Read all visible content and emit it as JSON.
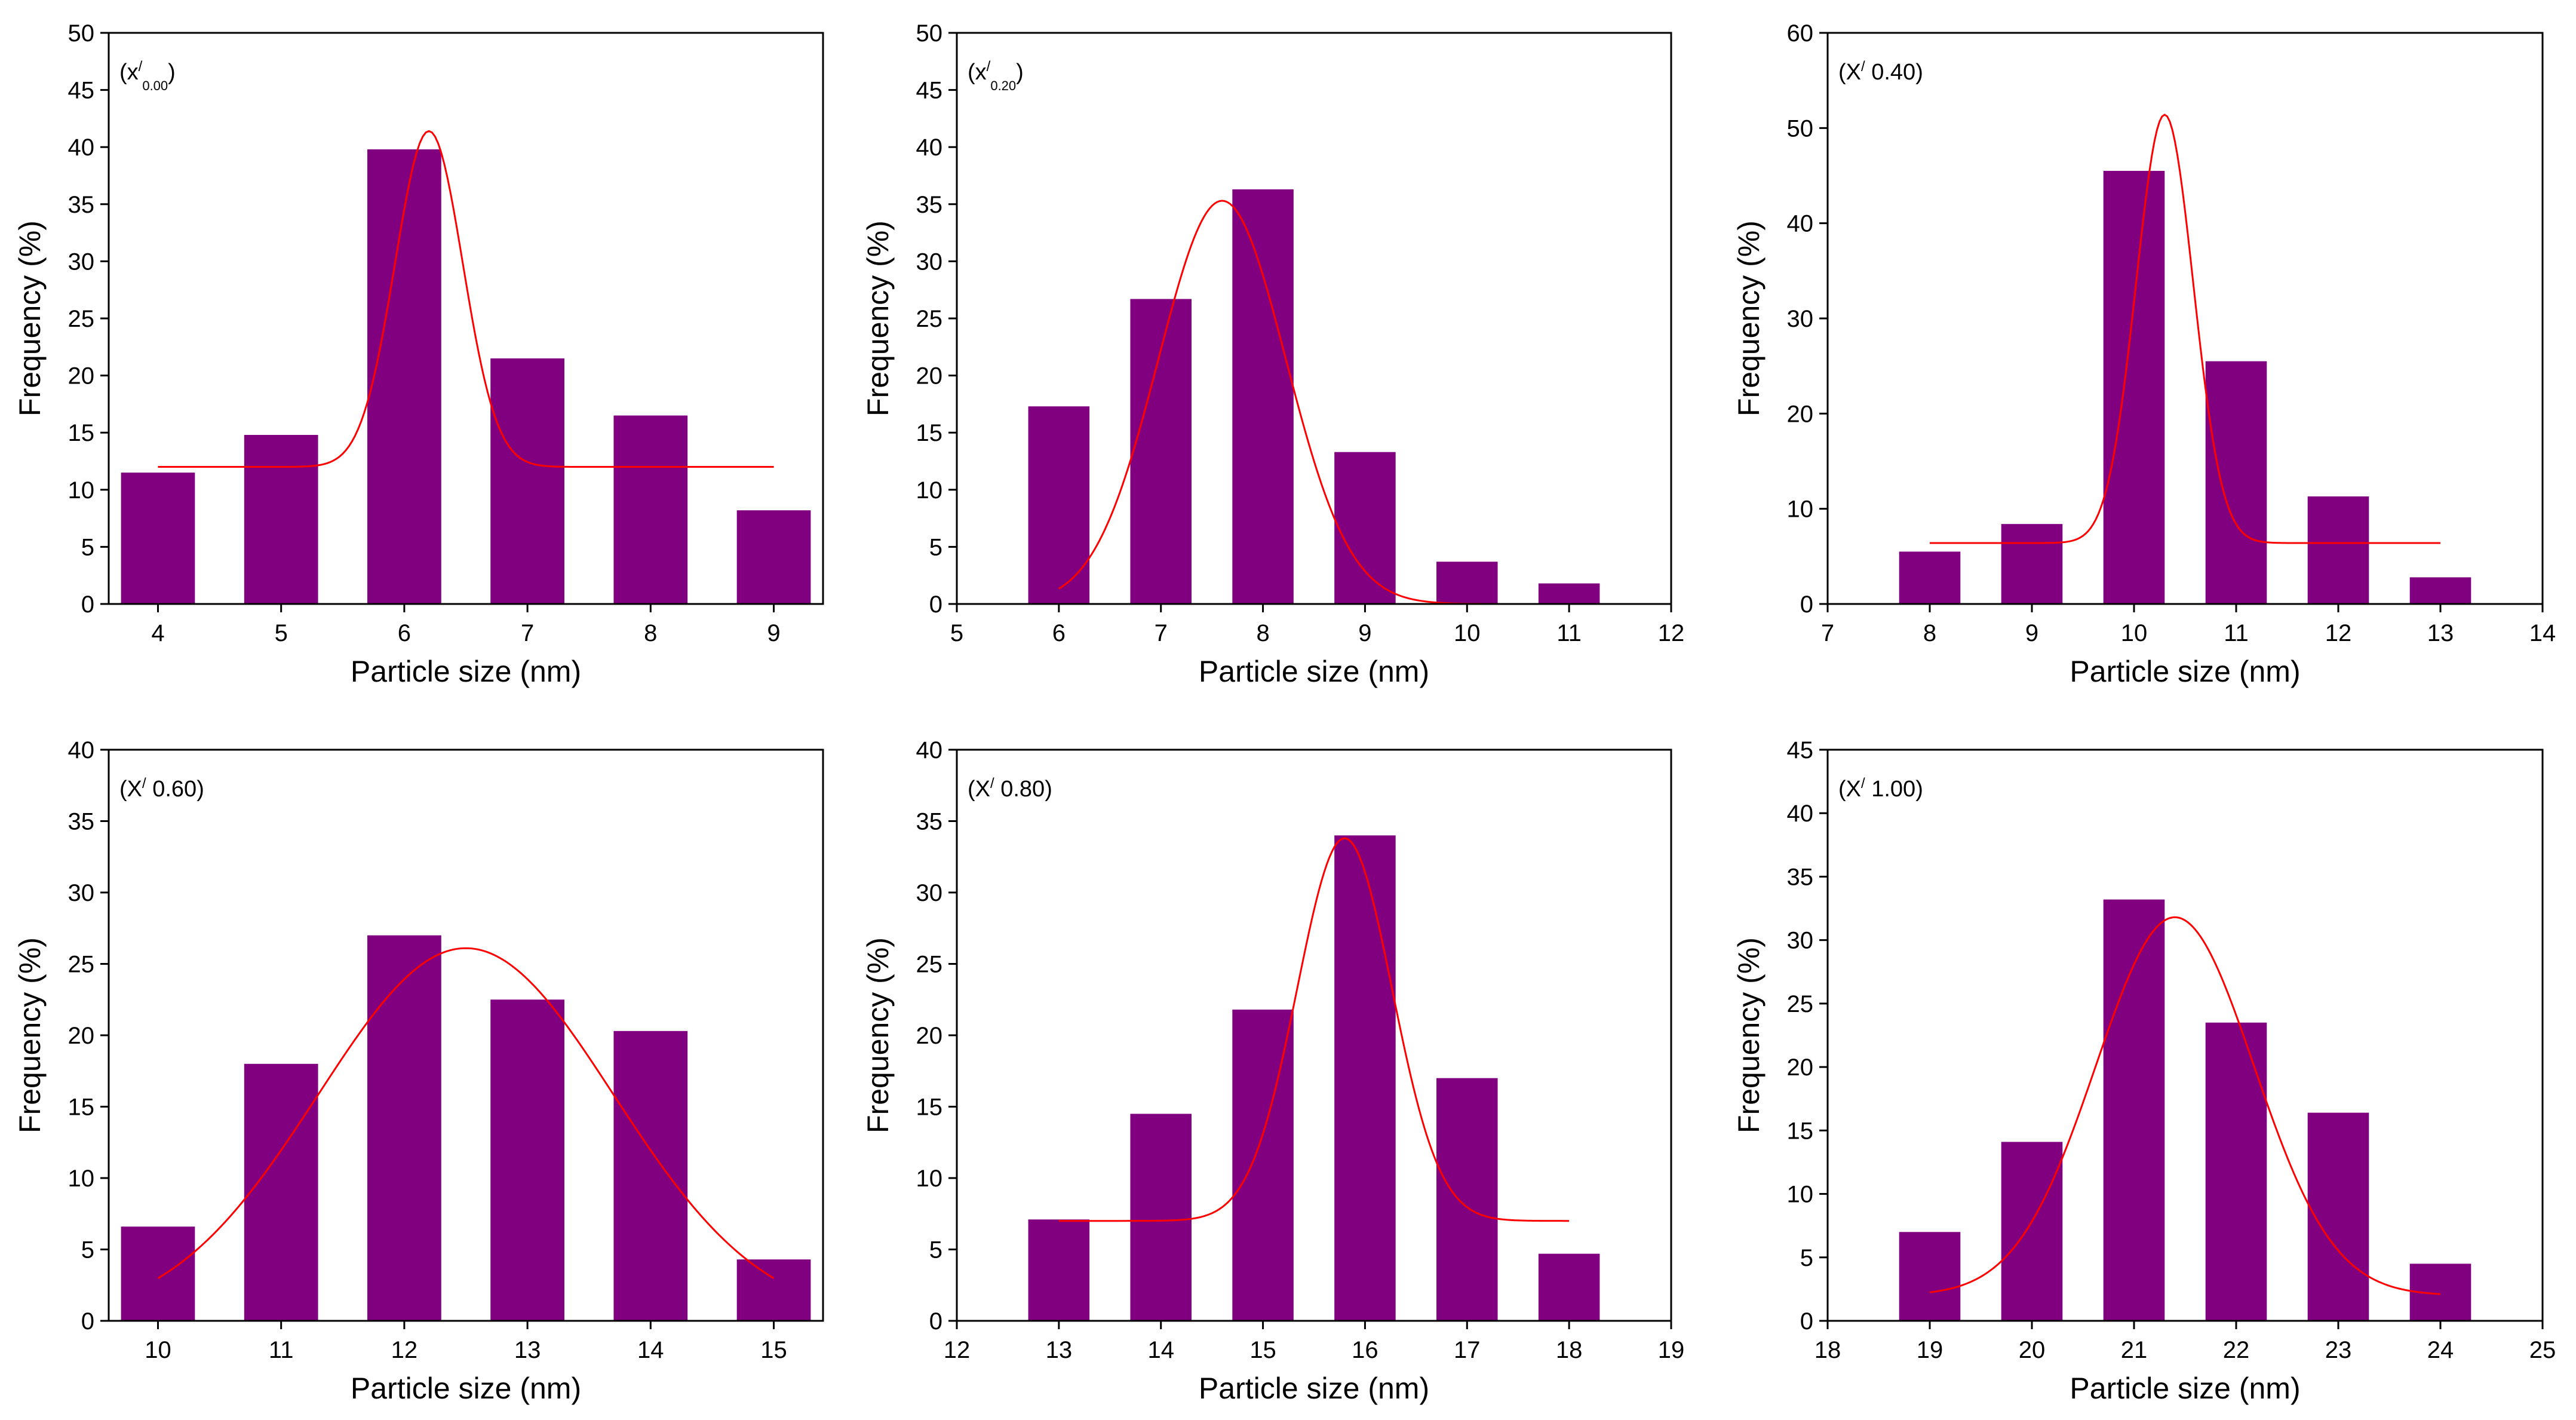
{
  "colors": {
    "bar": "#800080",
    "fit": "#ff0000",
    "axis": "#000000"
  },
  "chart_data": [
    {
      "type": "bar",
      "annotation": {
        "base": "(x",
        "sup": "/",
        "sub": "0.00",
        "close": ")"
      },
      "xlabel": "Particle size (nm)",
      "ylabel": "Frequency (%)",
      "xlim": [
        3.6,
        9.4
      ],
      "ylim": [
        0,
        50
      ],
      "xticks": [
        4,
        5,
        6,
        7,
        8,
        9
      ],
      "yticks": [
        0,
        5,
        10,
        15,
        20,
        25,
        30,
        35,
        40,
        45,
        50
      ],
      "bar_width": 0.6,
      "categories": [
        4,
        5,
        6,
        7,
        8,
        9
      ],
      "values": [
        11.5,
        14.8,
        39.8,
        21.5,
        16.5,
        8.2
      ],
      "fit": {
        "type": "gaussian",
        "y0": 12.0,
        "A": 29.4,
        "xc": 6.2,
        "w": 0.55,
        "x_range": [
          4.0,
          9.0
        ]
      }
    },
    {
      "type": "bar",
      "annotation": {
        "base": "(x",
        "sup": "/",
        "sub": "0.20",
        "close": ")"
      },
      "xlabel": "Particle size (nm)",
      "ylabel": "Frequency (%)",
      "xlim": [
        5,
        12
      ],
      "ylim": [
        0,
        50
      ],
      "xticks": [
        5,
        6,
        7,
        8,
        9,
        10,
        11,
        12
      ],
      "yticks": [
        0,
        5,
        10,
        15,
        20,
        25,
        30,
        35,
        40,
        45,
        50
      ],
      "bar_width": 0.6,
      "categories": [
        6,
        7,
        8,
        9,
        10,
        11
      ],
      "values": [
        17.3,
        26.7,
        36.3,
        13.3,
        3.7,
        1.8
      ],
      "fit": {
        "type": "gaussian",
        "y0": 0,
        "A": 35.3,
        "xc": 7.6,
        "w": 1.25,
        "x_range": [
          6.0,
          11.0
        ]
      }
    },
    {
      "type": "bar",
      "annotation": {
        "base": "(X",
        "sup": "/",
        "sub": "",
        "close": " 0.40)"
      },
      "xlabel": "Particle size (nm)",
      "ylabel": "Frequency (%)",
      "xlim": [
        7,
        14
      ],
      "ylim": [
        0,
        60
      ],
      "xticks": [
        7,
        8,
        9,
        10,
        11,
        12,
        13,
        14
      ],
      "yticks": [
        0,
        10,
        20,
        30,
        40,
        50,
        60
      ],
      "bar_width": 0.6,
      "categories": [
        8,
        9,
        10,
        11,
        12,
        13
      ],
      "values": [
        5.5,
        8.4,
        45.5,
        25.5,
        11.3,
        2.8
      ],
      "fit": {
        "type": "gaussian",
        "y0": 6.4,
        "A": 45.0,
        "xc": 10.3,
        "w": 0.56,
        "x_range": [
          8.0,
          13.0
        ]
      }
    },
    {
      "type": "bar",
      "annotation": {
        "base": "(X",
        "sup": "/",
        "sub": "",
        "close": " 0.60)"
      },
      "xlabel": "Particle size (nm)",
      "ylabel": "Frequency (%)",
      "xlim": [
        9.6,
        15.4
      ],
      "ylim": [
        0,
        40
      ],
      "xticks": [
        10,
        11,
        12,
        13,
        14,
        15
      ],
      "yticks": [
        0,
        5,
        10,
        15,
        20,
        25,
        30,
        35,
        40
      ],
      "bar_width": 0.6,
      "categories": [
        10,
        11,
        12,
        13,
        14,
        15
      ],
      "values": [
        6.6,
        18.0,
        27.0,
        22.5,
        20.3,
        4.3
      ],
      "fit": {
        "type": "gaussian",
        "y0": 0,
        "A": 26.1,
        "xc": 12.5,
        "w": 2.4,
        "x_range": [
          10.0,
          15.0
        ]
      }
    },
    {
      "type": "bar",
      "annotation": {
        "base": "(X",
        "sup": "/",
        "sub": "",
        "close": " 0.80)"
      },
      "xlabel": "Particle size (nm)",
      "ylabel": "Frequency (%)",
      "xlim": [
        12,
        19
      ],
      "ylim": [
        0,
        40
      ],
      "xticks": [
        12,
        13,
        14,
        15,
        16,
        17,
        18,
        19
      ],
      "yticks": [
        0,
        5,
        10,
        15,
        20,
        25,
        30,
        35,
        40
      ],
      "bar_width": 0.6,
      "categories": [
        13,
        14,
        15,
        16,
        17,
        18
      ],
      "values": [
        7.1,
        14.5,
        21.8,
        34.0,
        17.0,
        4.7
      ],
      "fit": {
        "type": "gaussian",
        "y0": 7.0,
        "A": 26.8,
        "xc": 15.8,
        "w": 0.93,
        "x_range": [
          13.0,
          18.0
        ]
      }
    },
    {
      "type": "bar",
      "annotation": {
        "base": "(X",
        "sup": "/",
        "sub": "",
        "close": " 1.00)"
      },
      "xlabel": "Particle size (nm)",
      "ylabel": "Frequency (%)",
      "xlim": [
        18,
        25
      ],
      "ylim": [
        0,
        45
      ],
      "xticks": [
        18,
        19,
        20,
        21,
        22,
        23,
        24,
        25
      ],
      "yticks": [
        0,
        5,
        10,
        15,
        20,
        25,
        30,
        35,
        40,
        45
      ],
      "bar_width": 0.6,
      "categories": [
        19,
        20,
        21,
        22,
        23,
        24
      ],
      "values": [
        7.0,
        14.1,
        33.2,
        23.5,
        16.4,
        4.5
      ],
      "fit": {
        "type": "gaussian",
        "y0": 2.0,
        "A": 29.8,
        "xc": 21.4,
        "w": 1.55,
        "x_range": [
          19.0,
          24.0
        ]
      }
    }
  ]
}
